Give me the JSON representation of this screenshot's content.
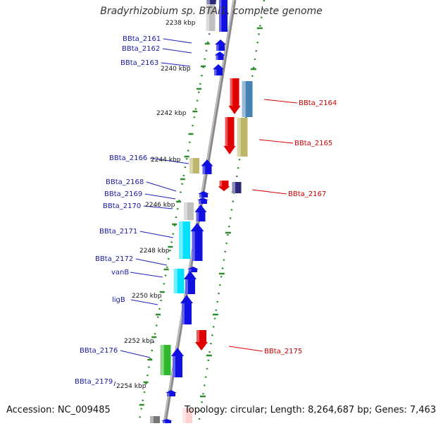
{
  "title": "Bradyrhizobium sp. BTAi1, complete genome",
  "accession": "Accession: NC_009485",
  "summary": "Topology: circular; Length: 8,264,687 bp; Genes: 7,463",
  "colors": {
    "left_gene_label": "#1a1aa0",
    "right_gene_label": "#cc0000",
    "tick_mark": "#2e8b2e",
    "backbone": "#8a8a8a",
    "blue": "#1010e0",
    "red": "#e00000",
    "cyan": "#00e0ff",
    "khaki": "#bdb76b",
    "grey": "#bfbfbf",
    "steelblue": "#4682b4",
    "green": "#2db82d",
    "navy": "#2a2a7a"
  },
  "scale_labels": [
    {
      "text": "2238 kbp"
    },
    {
      "text": "2240 kbp"
    },
    {
      "text": "2242 kbp"
    },
    {
      "text": "2244 kbp"
    },
    {
      "text": "2246 kbp"
    },
    {
      "text": "2248 kbp"
    },
    {
      "text": "2250 kbp"
    },
    {
      "text": "2252 kbp"
    },
    {
      "text": "2254 kbp"
    }
  ],
  "left_gene_labels": [
    {
      "text": "BBta_2161"
    },
    {
      "text": "BBta_2162"
    },
    {
      "text": "BBta_2163"
    },
    {
      "text": "BBta_2166"
    },
    {
      "text": "BBta_2168"
    },
    {
      "text": "BBta_2169"
    },
    {
      "text": "BBta_2170"
    },
    {
      "text": "BBta_2171"
    },
    {
      "text": "BBta_2172"
    },
    {
      "text": "vanB"
    },
    {
      "text": "ligB"
    },
    {
      "text": "BBta_2176"
    },
    {
      "text": "BBta_2179"
    }
  ],
  "right_gene_labels": [
    {
      "text": "BBta_2164"
    },
    {
      "text": "BBta_2165"
    },
    {
      "text": "BBta_2167"
    },
    {
      "text": "BBta_2175"
    }
  ]
}
